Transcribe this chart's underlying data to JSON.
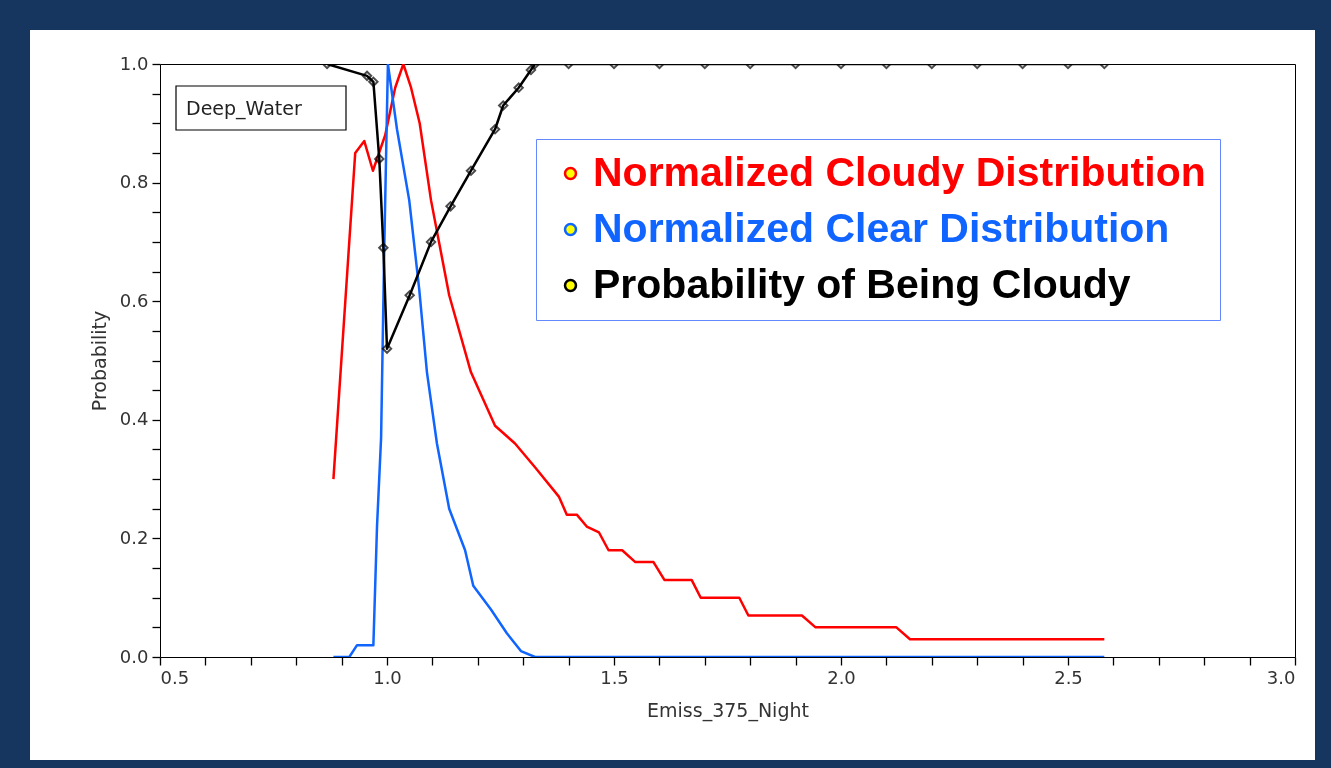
{
  "chart_data": {
    "type": "line",
    "xlabel": "Emiss_375_Night",
    "ylabel": "Probability",
    "annotations": [
      "Deep_Water"
    ],
    "xlim": [
      0.5,
      3.0
    ],
    "ylim": [
      0.0,
      1.0
    ],
    "xticks": [
      0.5,
      {
        "value": 0.6,
        "label": null
      },
      {
        "value": 0.7,
        "label": null
      },
      {
        "value": 0.8,
        "label": null
      },
      {
        "value": 0.9,
        "label": null
      },
      {
        "value": 1.0,
        "label": "1.0"
      },
      {
        "value": 1.1,
        "label": null
      },
      {
        "value": 1.2,
        "label": null
      },
      {
        "value": 1.3,
        "label": null
      },
      {
        "value": 1.4,
        "label": null
      },
      1.5,
      {
        "value": 1.6,
        "label": null
      },
      {
        "value": 1.7,
        "label": null
      },
      {
        "value": 1.8,
        "label": null
      },
      {
        "value": 1.9,
        "label": null
      },
      {
        "value": 2.0,
        "label": "2.0"
      },
      {
        "value": 2.1,
        "label": null
      },
      {
        "value": 2.2,
        "label": null
      },
      {
        "value": 2.3,
        "label": null
      },
      {
        "value": 2.4,
        "label": null
      },
      2.5,
      {
        "value": 2.6,
        "label": null
      },
      {
        "value": 2.7,
        "label": null
      },
      {
        "value": 2.8,
        "label": null
      },
      {
        "value": 2.9,
        "label": null
      },
      {
        "value": 3.0,
        "label": "3.0"
      }
    ],
    "yticks": [
      {
        "value": 0.0,
        "label": "0.0"
      },
      {
        "value": 0.05,
        "label": null
      },
      {
        "value": 0.1,
        "label": null
      },
      {
        "value": 0.15,
        "label": null
      },
      0.2,
      {
        "value": 0.25,
        "label": null
      },
      {
        "value": 0.3,
        "label": null
      },
      {
        "value": 0.35,
        "label": null
      },
      0.4,
      {
        "value": 0.45,
        "label": null
      },
      {
        "value": 0.5,
        "label": null
      },
      {
        "value": 0.55,
        "label": null
      },
      0.6,
      {
        "value": 0.65,
        "label": null
      },
      {
        "value": 0.7,
        "label": null
      },
      {
        "value": 0.75,
        "label": null
      },
      0.8,
      {
        "value": 0.85,
        "label": null
      },
      {
        "value": 0.9,
        "label": null
      },
      {
        "value": 0.95,
        "label": null
      },
      {
        "value": 1.0,
        "label": "1.0"
      }
    ],
    "grid": false,
    "legend": "top right",
    "series": [
      {
        "name": "Normalized Cloudy Distribution",
        "color": "#ff0000",
        "x": [
          0.882,
          0.93,
          0.95,
          0.969,
          0.996,
          1.018,
          1.036,
          1.053,
          1.072,
          1.097,
          1.137,
          1.185,
          1.238,
          1.282,
          1.326,
          1.379,
          1.396,
          1.418,
          1.44,
          1.467,
          1.488,
          1.518,
          1.547,
          1.587,
          1.611,
          1.671,
          1.691,
          1.776,
          1.796,
          1.914,
          1.944,
          2.122,
          2.152,
          2.58
        ],
        "values": [
          0.3,
          0.85,
          0.87,
          0.82,
          0.88,
          0.96,
          1.0,
          0.96,
          0.9,
          0.77,
          0.61,
          0.48,
          0.39,
          0.36,
          0.32,
          0.27,
          0.24,
          0.24,
          0.22,
          0.21,
          0.18,
          0.18,
          0.16,
          0.16,
          0.13,
          0.13,
          0.1,
          0.1,
          0.07,
          0.07,
          0.05,
          0.05,
          0.03,
          0.03
        ]
      },
      {
        "name": "Normalized Clear Distribution",
        "color": "#1064ff",
        "x": [
          0.882,
          0.917,
          0.934,
          0.952,
          0.97,
          0.978,
          0.987,
          0.994,
          1.002,
          1.022,
          1.049,
          1.071,
          1.088,
          1.11,
          1.137,
          1.172,
          1.19,
          1.229,
          1.264,
          1.295,
          1.326,
          2.58
        ],
        "values": [
          0,
          0,
          0.02,
          0.02,
          0.02,
          0.22,
          0.37,
          0.69,
          1.0,
          0.89,
          0.77,
          0.62,
          0.48,
          0.36,
          0.25,
          0.18,
          0.12,
          0.08,
          0.04,
          0.01,
          0,
          0
        ]
      },
      {
        "name": "Probability of Being Cloudy",
        "color": "#000000",
        "marker": "diamond",
        "x": [
          0.868,
          0.956,
          0.97,
          0.983,
          0.992,
          1.0,
          1.05,
          1.097,
          1.14,
          1.185,
          1.238,
          1.256,
          1.29,
          1.317,
          1.326,
          1.4,
          1.5,
          1.6,
          1.7,
          1.8,
          1.9,
          2.0,
          2.1,
          2.2,
          2.3,
          2.4,
          2.5,
          2.58
        ],
        "values": [
          1.0,
          0.98,
          0.97,
          0.84,
          0.69,
          0.52,
          0.61,
          0.7,
          0.76,
          0.82,
          0.89,
          0.93,
          0.96,
          0.99,
          1.0,
          1.0,
          1.0,
          1.0,
          1.0,
          1.0,
          1.0,
          1.0,
          1.0,
          1.0,
          1.0,
          1.0,
          1.0,
          1.0
        ]
      }
    ]
  }
}
